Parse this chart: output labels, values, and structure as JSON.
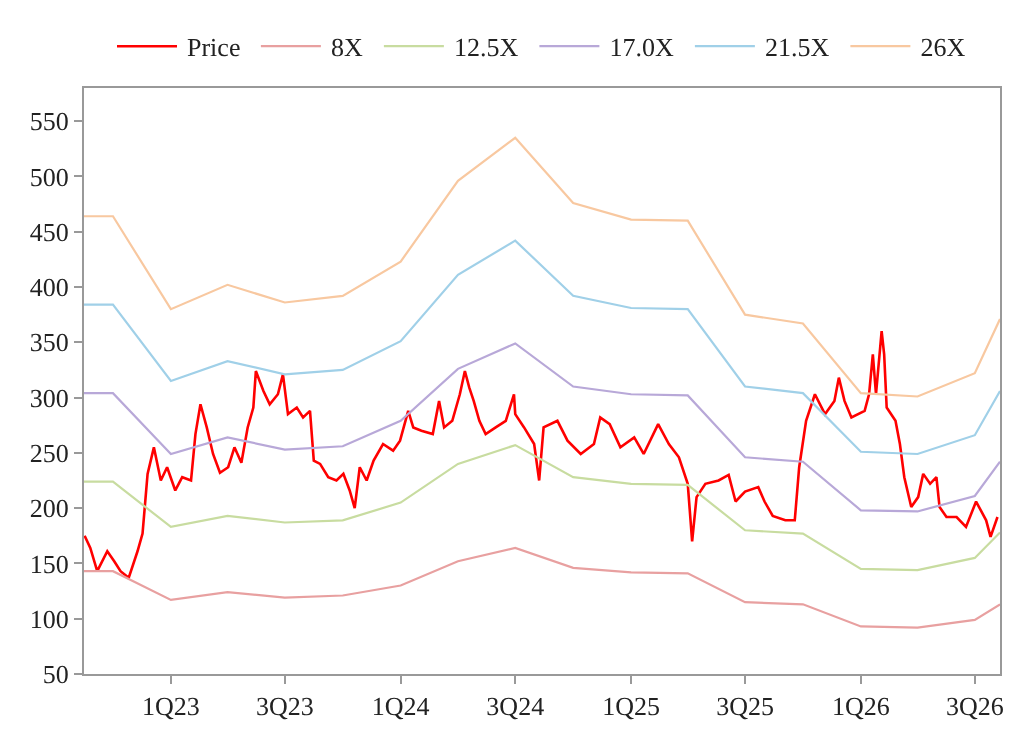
{
  "chart_data": {
    "type": "line",
    "legend": "top",
    "xlim": [
      "2022-08-16",
      "2026-08-10"
    ],
    "ylim": [
      50,
      580
    ],
    "xticks": [
      {
        "value": "2023-01-01",
        "label": "1Q23"
      },
      {
        "value": "2023-07-01",
        "label": "3Q23"
      },
      {
        "value": "2024-01-01",
        "label": "1Q24"
      },
      {
        "value": "2024-07-01",
        "label": "3Q24"
      },
      {
        "value": "2025-01-01",
        "label": "1Q25"
      },
      {
        "value": "2025-07-01",
        "label": "3Q25"
      },
      {
        "value": "2026-01-01",
        "label": "1Q26"
      },
      {
        "value": "2026-07-01",
        "label": "3Q26"
      }
    ],
    "yticks": [
      50,
      100,
      150,
      200,
      250,
      300,
      350,
      400,
      450,
      500,
      550
    ],
    "series": [
      {
        "name": "Price",
        "color": "#ff0000",
        "x": [
          "2022-08-17",
          "2022-08-26",
          "2022-09-06",
          "2022-09-22",
          "2022-10-03",
          "2022-10-13",
          "2022-10-26",
          "2022-11-09",
          "2022-11-17",
          "2022-11-25",
          "2022-12-05",
          "2022-12-16",
          "2022-12-26",
          "2023-01-08",
          "2023-01-19",
          "2023-02-02",
          "2023-02-09",
          "2023-02-17",
          "2023-02-27",
          "2023-03-09",
          "2023-03-20",
          "2023-04-02",
          "2023-04-12",
          "2023-04-23",
          "2023-05-03",
          "2023-05-12",
          "2023-05-16",
          "2023-05-28",
          "2023-06-07",
          "2023-06-20",
          "2023-06-28",
          "2023-07-06",
          "2023-07-20",
          "2023-07-30",
          "2023-08-10",
          "2023-08-16",
          "2023-08-26",
          "2023-09-08",
          "2023-09-21",
          "2023-10-02",
          "2023-10-12",
          "2023-10-20",
          "2023-10-28",
          "2023-11-08",
          "2023-11-19",
          "2023-12-04",
          "2023-12-20",
          "2023-12-31",
          "2024-01-13",
          "2024-01-21",
          "2024-02-03",
          "2024-02-21",
          "2024-03-02",
          "2024-03-10",
          "2024-03-23",
          "2024-04-04",
          "2024-04-12",
          "2024-04-19",
          "2024-04-26",
          "2024-05-05",
          "2024-05-15",
          "2024-05-31",
          "2024-06-16",
          "2024-06-29",
          "2024-07-01",
          "2024-07-15",
          "2024-07-31",
          "2024-08-08",
          "2024-08-15",
          "2024-09-06",
          "2024-09-22",
          "2024-10-13",
          "2024-11-03",
          "2024-11-13",
          "2024-11-28",
          "2024-12-15",
          "2025-01-06",
          "2025-01-21",
          "2025-02-13",
          "2025-03-02",
          "2025-03-18",
          "2025-04-01",
          "2025-04-08",
          "2025-04-15",
          "2025-04-29",
          "2025-05-20",
          "2025-06-05",
          "2025-06-16",
          "2025-07-01",
          "2025-07-22",
          "2025-08-01",
          "2025-08-14",
          "2025-09-03",
          "2025-09-18",
          "2025-09-25",
          "2025-10-06",
          "2025-10-20",
          "2025-11-05",
          "2025-11-20",
          "2025-11-27",
          "2025-12-06",
          "2025-12-17",
          "2026-01-07",
          "2026-01-14",
          "2026-01-20",
          "2026-01-25",
          "2026-02-03",
          "2026-02-07",
          "2026-02-11",
          "2026-02-25",
          "2026-03-04",
          "2026-03-11",
          "2026-03-22",
          "2026-04-02",
          "2026-04-10",
          "2026-04-21",
          "2026-05-01",
          "2026-05-06",
          "2026-05-17",
          "2026-06-02",
          "2026-06-17",
          "2026-07-03",
          "2026-07-19",
          "2026-07-26",
          "2026-08-06"
        ],
        "values": [
          175,
          164,
          143,
          161,
          152,
          143,
          137,
          161,
          177,
          231,
          255,
          225,
          237,
          216,
          228,
          225,
          267,
          294,
          273,
          249,
          232,
          237,
          255,
          241,
          273,
          291,
          324,
          306,
          294,
          303,
          321,
          285,
          291,
          282,
          288,
          243,
          240,
          228,
          225,
          231,
          216,
          200,
          237,
          225,
          243,
          258,
          252,
          261,
          288,
          273,
          270,
          267,
          297,
          273,
          279,
          303,
          324,
          309,
          297,
          279,
          267,
          273,
          279,
          303,
          285,
          273,
          258,
          225,
          273,
          279,
          261,
          249,
          258,
          282,
          276,
          255,
          264,
          249,
          276,
          258,
          246,
          222,
          170,
          210,
          222,
          225,
          230,
          206,
          215,
          219,
          206,
          193,
          189,
          189,
          237,
          279,
          303,
          285,
          297,
          318,
          297,
          282,
          288,
          303,
          339,
          303,
          360,
          339,
          291,
          279,
          258,
          228,
          201,
          210,
          231,
          222,
          228,
          201,
          192,
          192,
          183,
          206,
          189,
          174,
          192
        ]
      },
      {
        "name": "8X",
        "color": "#e8a0a0",
        "x": [
          "2022-08-16",
          "2022-10-01",
          "2023-01-01",
          "2023-04-01",
          "2023-07-01",
          "2023-10-01",
          "2024-01-01",
          "2024-04-01",
          "2024-07-01",
          "2024-10-01",
          "2025-01-01",
          "2025-04-01",
          "2025-07-01",
          "2025-10-01",
          "2026-01-01",
          "2026-04-01",
          "2026-07-01",
          "2026-08-10"
        ],
        "values": [
          143,
          143,
          117,
          124,
          119,
          121,
          130,
          152,
          164,
          146,
          142,
          141,
          115,
          113,
          93,
          92,
          99,
          113
        ]
      },
      {
        "name": "12.5X",
        "color": "#c8dca0",
        "x": [
          "2022-08-16",
          "2022-10-01",
          "2023-01-01",
          "2023-04-01",
          "2023-07-01",
          "2023-10-01",
          "2024-01-01",
          "2024-04-01",
          "2024-07-01",
          "2024-10-01",
          "2025-01-01",
          "2025-04-01",
          "2025-07-01",
          "2025-10-01",
          "2026-01-01",
          "2026-04-01",
          "2026-07-01",
          "2026-08-10"
        ],
        "values": [
          224,
          224,
          183,
          193,
          187,
          189,
          205,
          240,
          257,
          228,
          222,
          221,
          180,
          177,
          145,
          144,
          155,
          178
        ]
      },
      {
        "name": "17.0X",
        "color": "#b8a8d8",
        "x": [
          "2022-08-16",
          "2022-10-01",
          "2023-01-01",
          "2023-04-01",
          "2023-07-01",
          "2023-10-01",
          "2024-01-01",
          "2024-04-01",
          "2024-07-01",
          "2024-10-01",
          "2025-01-01",
          "2025-04-01",
          "2025-07-01",
          "2025-10-01",
          "2026-01-01",
          "2026-04-01",
          "2026-07-01",
          "2026-08-10"
        ],
        "values": [
          304,
          304,
          249,
          264,
          253,
          256,
          279,
          326,
          349,
          310,
          303,
          302,
          246,
          242,
          198,
          197,
          211,
          242
        ]
      },
      {
        "name": "21.5X",
        "color": "#a0d0e8",
        "x": [
          "2022-08-16",
          "2022-10-01",
          "2023-01-01",
          "2023-04-01",
          "2023-07-01",
          "2023-10-01",
          "2024-01-01",
          "2024-04-01",
          "2024-07-01",
          "2024-10-01",
          "2025-01-01",
          "2025-04-01",
          "2025-07-01",
          "2025-10-01",
          "2026-01-01",
          "2026-04-01",
          "2026-07-01",
          "2026-08-10"
        ],
        "values": [
          384,
          384,
          315,
          333,
          321,
          325,
          351,
          411,
          442,
          392,
          381,
          380,
          310,
          304,
          251,
          249,
          266,
          306
        ]
      },
      {
        "name": "26X",
        "color": "#f8c8a0",
        "x": [
          "2022-08-16",
          "2022-10-01",
          "2023-01-01",
          "2023-04-01",
          "2023-07-01",
          "2023-10-01",
          "2024-01-01",
          "2024-04-01",
          "2024-07-01",
          "2024-10-01",
          "2025-01-01",
          "2025-04-01",
          "2025-07-01",
          "2025-10-01",
          "2026-01-01",
          "2026-04-01",
          "2026-07-01",
          "2026-08-10"
        ],
        "values": [
          464,
          464,
          380,
          402,
          386,
          392,
          423,
          496,
          535,
          476,
          461,
          460,
          375,
          367,
          304,
          301,
          322,
          371
        ]
      }
    ]
  }
}
